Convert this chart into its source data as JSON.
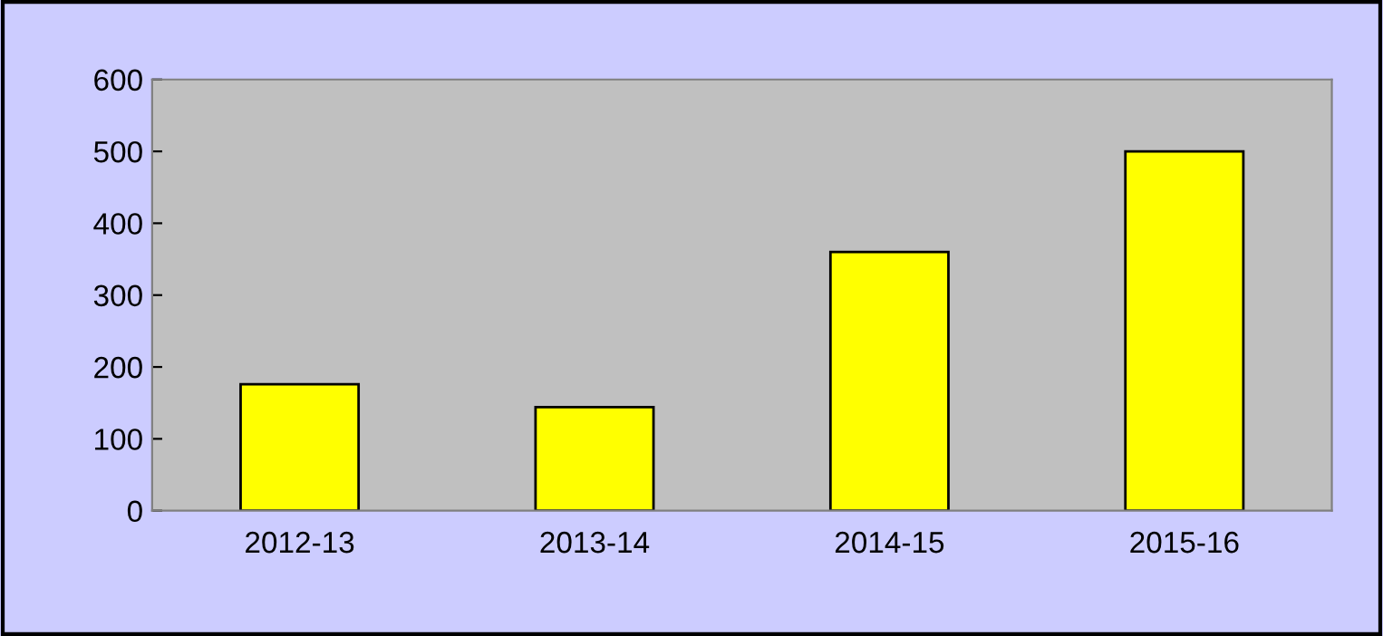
{
  "chart_data": {
    "type": "bar",
    "categories": [
      "2012-13",
      "2013-14",
      "2014-15",
      "2015-16"
    ],
    "series": [
      {
        "color": "#ffff00",
        "values": [
          176,
          144,
          360,
          500
        ]
      }
    ],
    "ylim": [
      0,
      600
    ],
    "yticks": [
      0,
      100,
      200,
      300,
      400,
      500,
      600
    ],
    "grid": false,
    "legend": false
  }
}
